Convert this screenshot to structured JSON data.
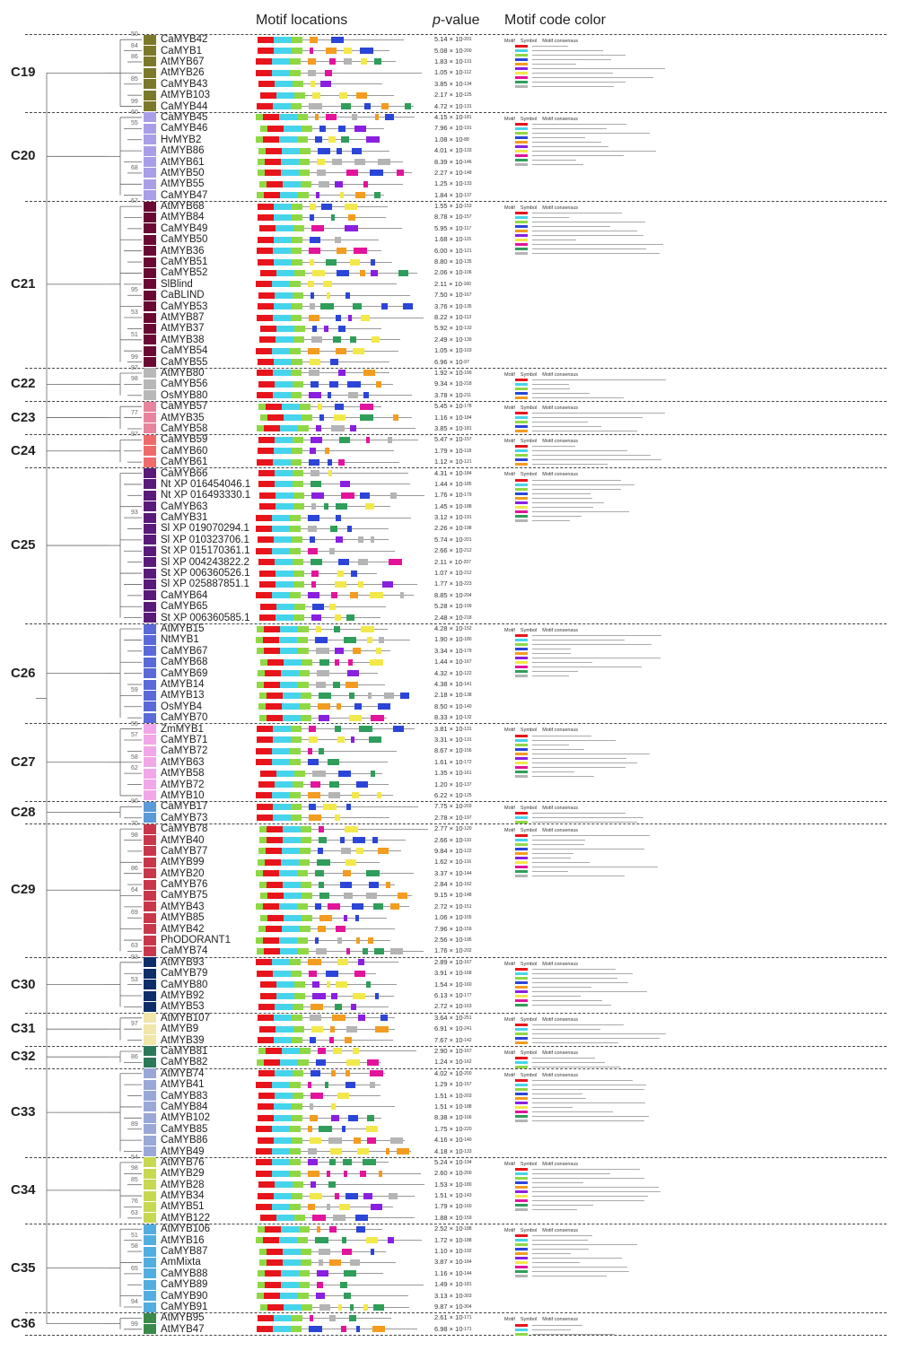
{
  "headers": {
    "motif_locations": "Motif locations",
    "p_value_prefix": "p",
    "p_value_suffix": "-value",
    "motif_code_color": "Motif code color"
  },
  "legend_labels": {
    "motif": "Motif",
    "symbol": "Symbol",
    "consensus": "Motif consensus"
  },
  "motif_colors": [
    "#e8141b",
    "#46d4ec",
    "#8fd843",
    "#2b45d8",
    "#f39c1f",
    "#8a1fe0",
    "#f3e84a",
    "#e3149b",
    "#2f9e5a",
    "#b4b4b4"
  ],
  "clades": [
    {
      "name": "C19",
      "color": "#7a7a2a",
      "genes": [
        {
          "name": "CaMYB42",
          "pv": "5.14 × 10",
          "exp": "-201",
          "bs": "50"
        },
        {
          "name": "CaMYB1",
          "pv": "5.08 × 10",
          "exp": "-200",
          "bs": "84"
        },
        {
          "name": "AtMYB67",
          "pv": "1.83 × 10",
          "exp": "-131",
          "bs": "86"
        },
        {
          "name": "AtMYB26",
          "pv": "1.05 × 10",
          "exp": "-112",
          "bs": ""
        },
        {
          "name": "CaMYB43",
          "pv": "3.85 × 10",
          "exp": "-134",
          "bs": "85"
        },
        {
          "name": "AtMYB103",
          "pv": "2.17 × 10",
          "exp": "-125",
          "bs": ""
        },
        {
          "name": "CaMYB44",
          "pv": "4.72 × 10",
          "exp": "-131",
          "bs": "99"
        }
      ]
    },
    {
      "name": "C20",
      "color": "#a99ee8",
      "genes": [
        {
          "name": "CaMYB45",
          "pv": "4.15 × 10",
          "exp": "-181",
          "bs": "60"
        },
        {
          "name": "CaMYB46",
          "pv": "7.96 × 10",
          "exp": "-191",
          "bs": "55"
        },
        {
          "name": "HvMYB2",
          "pv": "1.08 × 10",
          "exp": "-88",
          "bs": ""
        },
        {
          "name": "AtMYB86",
          "pv": "4.01 × 10",
          "exp": "-133",
          "bs": ""
        },
        {
          "name": "AtMYB61",
          "pv": "8.39 × 10",
          "exp": "-146",
          "bs": ""
        },
        {
          "name": "AtMYB50",
          "pv": "2.27 × 10",
          "exp": "-148",
          "bs": "68"
        },
        {
          "name": "AtMYB55",
          "pv": "1.25 × 10",
          "exp": "-133",
          "bs": ""
        },
        {
          "name": "CaMYB47",
          "pv": "1.84 × 10",
          "exp": "-137",
          "bs": ""
        }
      ]
    },
    {
      "name": "C21",
      "color": "#6a0a32",
      "genes": [
        {
          "name": "AtMYB68",
          "pv": "1.55 × 10",
          "exp": "-153",
          "bs": "67"
        },
        {
          "name": "AtMYB84",
          "pv": "8.78 × 10",
          "exp": "-157",
          "bs": ""
        },
        {
          "name": "CaMYB49",
          "pv": "5.95 × 10",
          "exp": "-117",
          "bs": ""
        },
        {
          "name": "CaMYB50",
          "pv": "1.68 × 10",
          "exp": "-115",
          "bs": ""
        },
        {
          "name": "AtMYB36",
          "pv": "6.00 × 10",
          "exp": "-121",
          "bs": ""
        },
        {
          "name": "CaMYB51",
          "pv": "8.80 × 10",
          "exp": "-135",
          "bs": ""
        },
        {
          "name": "CaMYB52",
          "pv": "2.06 × 10",
          "exp": "-106",
          "bs": ""
        },
        {
          "name": "SlBlind",
          "pv": "2.11 × 10",
          "exp": "-160",
          "bs": ""
        },
        {
          "name": "CaBLIND",
          "pv": "7.50 × 10",
          "exp": "-167",
          "bs": "95"
        },
        {
          "name": "CaMYB53",
          "pv": "3.76 × 10",
          "exp": "-135",
          "bs": ""
        },
        {
          "name": "AtMYB87",
          "pv": "8.22 × 10",
          "exp": "-113",
          "bs": "53"
        },
        {
          "name": "AtMYB37",
          "pv": "5.92 × 10",
          "exp": "-133",
          "bs": ""
        },
        {
          "name": "AtMYB38",
          "pv": "2.49 × 10",
          "exp": "-139",
          "bs": "51"
        },
        {
          "name": "CaMYB54",
          "pv": "1.05 × 10",
          "exp": "-103",
          "bs": ""
        },
        {
          "name": "CaMYB55",
          "pv": "6.96 × 10",
          "exp": "-97",
          "bs": "99"
        }
      ]
    },
    {
      "name": "C22",
      "color": "#b8b8b8",
      "genes": [
        {
          "name": "AtMYB80",
          "pv": "1.92 × 10",
          "exp": "-199",
          "bs": "97"
        },
        {
          "name": "CaMYB56",
          "pv": "9.34 × 10",
          "exp": "-218",
          "bs": "98"
        },
        {
          "name": "OsMYB80",
          "pv": "3.78 × 10",
          "exp": "-211",
          "bs": ""
        }
      ]
    },
    {
      "name": "C23",
      "color": "#e8849e",
      "genes": [
        {
          "name": "CaMYB57",
          "pv": "5.45 × 10",
          "exp": "-178",
          "bs": ""
        },
        {
          "name": "AtMYB35",
          "pv": "1.16 × 10",
          "exp": "-184",
          "bs": "77"
        },
        {
          "name": "CaMYB58",
          "pv": "3.85 × 10",
          "exp": "-181",
          "bs": ""
        }
      ]
    },
    {
      "name": "C24",
      "color": "#f06a6a",
      "genes": [
        {
          "name": "CaMYB59",
          "pv": "5.47 × 10",
          "exp": "-157",
          "bs": "97"
        },
        {
          "name": "CaMYB60",
          "pv": "1.79 × 10",
          "exp": "-118",
          "bs": ""
        },
        {
          "name": "CaMYB61",
          "pv": "1.12 × 10",
          "exp": "-121",
          "bs": ""
        }
      ]
    },
    {
      "name": "C25",
      "color": "#5a1a7a",
      "genes": [
        {
          "name": "CaMYB66",
          "pv": "4.31 × 10",
          "exp": "-184",
          "bs": ""
        },
        {
          "name": "Nt XP 016454046.1",
          "pv": "1.44 × 10",
          "exp": "-185",
          "bs": ""
        },
        {
          "name": "Nt XP 016493330.1",
          "pv": "1.76 × 10",
          "exp": "-179",
          "bs": ""
        },
        {
          "name": "CaMYB63",
          "pv": "1.45 × 10",
          "exp": "-188",
          "bs": ""
        },
        {
          "name": "CaMYB31",
          "pv": "3.12 × 10",
          "exp": "-191",
          "bs": "93"
        },
        {
          "name": "Sl XP 019070294.1",
          "pv": "2.26 × 10",
          "exp": "-198",
          "bs": ""
        },
        {
          "name": "Sl XP 010323706.1",
          "pv": "5.74 × 10",
          "exp": "-201",
          "bs": ""
        },
        {
          "name": "St XP 015170361.1",
          "pv": "2.66 × 10",
          "exp": "-212",
          "bs": ""
        },
        {
          "name": "Sl XP 004243822.2",
          "pv": "2.11 × 10",
          "exp": "-207",
          "bs": ""
        },
        {
          "name": "St XP 006360526.1",
          "pv": "1.07 × 10",
          "exp": "-212",
          "bs": ""
        },
        {
          "name": "Sl XP 025887851.1",
          "pv": "1.77 × 10",
          "exp": "-223",
          "bs": ""
        },
        {
          "name": "CaMYB64",
          "pv": "8.85 × 10",
          "exp": "-204",
          "bs": ""
        },
        {
          "name": "CaMYB65",
          "pv": "5.28 × 10",
          "exp": "-199",
          "bs": ""
        },
        {
          "name": "St XP 006360585.1",
          "pv": "2.48 × 10",
          "exp": "-218",
          "bs": ""
        }
      ]
    },
    {
      "name": "C26",
      "color": "#5a6ad8",
      "genes": [
        {
          "name": "AtMYB15",
          "pv": "4.28 × 10",
          "exp": "-152",
          "bs": ""
        },
        {
          "name": "NtMYB1",
          "pv": "1.90 × 10",
          "exp": "-180",
          "bs": ""
        },
        {
          "name": "CaMYB67",
          "pv": "3.34 × 10",
          "exp": "-179",
          "bs": ""
        },
        {
          "name": "CaMYB68",
          "pv": "1.44 × 10",
          "exp": "-167",
          "bs": ""
        },
        {
          "name": "CaMYB69",
          "pv": "4.32 × 10",
          "exp": "-122",
          "bs": ""
        },
        {
          "name": "AtMYB14",
          "pv": "4.38 × 10",
          "exp": "-141",
          "bs": ""
        },
        {
          "name": "AtMYB13",
          "pv": "2.18 × 10",
          "exp": "-138",
          "bs": "59"
        },
        {
          "name": "OsMYB4",
          "pv": "8.50 × 10",
          "exp": "-140",
          "bs": ""
        },
        {
          "name": "CaMYB70",
          "pv": "8.33 × 10",
          "exp": "-132",
          "bs": ""
        }
      ]
    },
    {
      "name": "C27",
      "color": "#f2a8e8",
      "genes": [
        {
          "name": "ZmMYB1",
          "pv": "3.81 × 10",
          "exp": "-131",
          "bs": "55"
        },
        {
          "name": "CaMYB71",
          "pv": "3.31 × 10",
          "exp": "-131",
          "bs": "57"
        },
        {
          "name": "CaMYB72",
          "pv": "8.67 × 10",
          "exp": "-156",
          "bs": ""
        },
        {
          "name": "AtMYB63",
          "pv": "1.61 × 10",
          "exp": "-172",
          "bs": "58"
        },
        {
          "name": "AtMYB58",
          "pv": "1.35 × 10",
          "exp": "-161",
          "bs": "62"
        },
        {
          "name": "AtMYB72",
          "pv": "1.20 × 10",
          "exp": "-137",
          "bs": ""
        },
        {
          "name": "AtMYB10",
          "pv": "6.22 × 10",
          "exp": "-125",
          "bs": ""
        }
      ]
    },
    {
      "name": "C28",
      "color": "#5a9ad8",
      "genes": [
        {
          "name": "CaMYB17",
          "pv": "7.75 × 10",
          "exp": "-203",
          "bs": "90"
        },
        {
          "name": "CaMYB73",
          "pv": "2.78 × 10",
          "exp": "-197",
          "bs": ""
        }
      ]
    },
    {
      "name": "C29",
      "color": "#c8384a",
      "genes": [
        {
          "name": "CaMYB78",
          "pv": "2.77 × 10",
          "exp": "-120",
          "bs": "70"
        },
        {
          "name": "AtMYB40",
          "pv": "2.66 × 10",
          "exp": "-110",
          "bs": "98"
        },
        {
          "name": "CaMYB77",
          "pv": "9.84 × 10",
          "exp": "-122",
          "bs": ""
        },
        {
          "name": "AtMYB99",
          "pv": "1.62 × 10",
          "exp": "-116",
          "bs": ""
        },
        {
          "name": "AtMYB20",
          "pv": "3.37 × 10",
          "exp": "-144",
          "bs": "86"
        },
        {
          "name": "CaMYB76",
          "pv": "2.84 × 10",
          "exp": "-162",
          "bs": ""
        },
        {
          "name": "CaMYB75",
          "pv": "9.15 × 10",
          "exp": "-148",
          "bs": "64"
        },
        {
          "name": "AtMYB43",
          "pv": "2.72 × 10",
          "exp": "-151",
          "bs": ""
        },
        {
          "name": "AtMYB85",
          "pv": "1.06 × 10",
          "exp": "-165",
          "bs": "69"
        },
        {
          "name": "AtMYB42",
          "pv": "7.96 × 10",
          "exp": "-159",
          "bs": ""
        },
        {
          "name": "PhODORANT1",
          "pv": "2.56 × 10",
          "exp": "-195",
          "bs": ""
        },
        {
          "name": "CaMYB74",
          "pv": "1.76 × 10",
          "exp": "-202",
          "bs": "63"
        }
      ]
    },
    {
      "name": "C30",
      "color": "#0e2e6a",
      "genes": [
        {
          "name": "AtMYB93",
          "pv": "2.89 × 10",
          "exp": "-167",
          "bs": "93"
        },
        {
          "name": "CaMYB79",
          "pv": "3.91 × 10",
          "exp": "-168",
          "bs": ""
        },
        {
          "name": "CaMYB80",
          "pv": "1.54 × 10",
          "exp": "-160",
          "bs": "53"
        },
        {
          "name": "AtMYB92",
          "pv": "6.13 × 10",
          "exp": "-177",
          "bs": ""
        },
        {
          "name": "AtMYB53",
          "pv": "2.72 × 10",
          "exp": "-163",
          "bs": ""
        }
      ]
    },
    {
      "name": "C31",
      "color": "#f2e6a8",
      "genes": [
        {
          "name": "AtMYB107",
          "pv": "3.64 × 10",
          "exp": "-251",
          "bs": ""
        },
        {
          "name": "AtMYB9",
          "pv": "6.91 × 10",
          "exp": "-241",
          "bs": "97"
        },
        {
          "name": "AtMYB39",
          "pv": "7.67 × 10",
          "exp": "-142",
          "bs": ""
        }
      ]
    },
    {
      "name": "C32",
      "color": "#2a7a5a",
      "genes": [
        {
          "name": "CaMYB81",
          "pv": "2.90 × 10",
          "exp": "-167",
          "bs": ""
        },
        {
          "name": "CaMYB82",
          "pv": "1.24 × 10",
          "exp": "-162",
          "bs": "86"
        }
      ]
    },
    {
      "name": "C33",
      "color": "#9aa8d8",
      "genes": [
        {
          "name": "AtMYB74",
          "pv": "4.02 × 10",
          "exp": "-200",
          "bs": ""
        },
        {
          "name": "AtMYB41",
          "pv": "1.29 × 10",
          "exp": "-157",
          "bs": ""
        },
        {
          "name": "CaMYB83",
          "pv": "1.51 × 10",
          "exp": "-203",
          "bs": ""
        },
        {
          "name": "CaMYB84",
          "pv": "1.51 × 10",
          "exp": "-188",
          "bs": ""
        },
        {
          "name": "AtMYB102",
          "pv": "8.38 × 10",
          "exp": "-166",
          "bs": ""
        },
        {
          "name": "CaMYB85",
          "pv": "1.75 × 10",
          "exp": "-220",
          "bs": "89"
        },
        {
          "name": "CaMYB86",
          "pv": "4.16 × 10",
          "exp": "-140",
          "bs": ""
        },
        {
          "name": "AtMYB49",
          "pv": "4.18 × 10",
          "exp": "-133",
          "bs": ""
        }
      ]
    },
    {
      "name": "C34",
      "color": "#c8d850",
      "genes": [
        {
          "name": "AtMYB76",
          "pv": "5.24 × 10",
          "exp": "-194",
          "bs": "54"
        },
        {
          "name": "AtMYB29",
          "pv": "2.60 × 10",
          "exp": "-200",
          "bs": "98"
        },
        {
          "name": "AtMYB28",
          "pv": "1.53 × 10",
          "exp": "-180",
          "bs": "85"
        },
        {
          "name": "AtMYB34",
          "pv": "1.51 × 10",
          "exp": "-143",
          "bs": ""
        },
        {
          "name": "AtMYB51",
          "pv": "1.79 × 10",
          "exp": "-160",
          "bs": "76"
        },
        {
          "name": "AtMYB122",
          "pv": "1.88 × 10",
          "exp": "-159",
          "bs": "63"
        }
      ]
    },
    {
      "name": "C35",
      "color": "#52aee0",
      "genes": [
        {
          "name": "AtMYB106",
          "pv": "2.52 × 10",
          "exp": "-188",
          "bs": ""
        },
        {
          "name": "AtMYB16",
          "pv": "1.72 × 10",
          "exp": "-188",
          "bs": "51"
        },
        {
          "name": "CaMYB87",
          "pv": "1.10 × 10",
          "exp": "-192",
          "bs": "58"
        },
        {
          "name": "AmMixta",
          "pv": "3.87 × 10",
          "exp": "-184",
          "bs": ""
        },
        {
          "name": "CaMYB88",
          "pv": "1.16 × 10",
          "exp": "-144",
          "bs": "65"
        },
        {
          "name": "CaMYB89",
          "pv": "1.49 × 10",
          "exp": "-181",
          "bs": ""
        },
        {
          "name": "CaMYB90",
          "pv": "3.13 × 10",
          "exp": "-303",
          "bs": ""
        },
        {
          "name": "CaMYB91",
          "pv": "9.87 × 10",
          "exp": "-304",
          "bs": "94"
        }
      ]
    },
    {
      "name": "C36",
      "color": "#3a8a4a",
      "genes": [
        {
          "name": "AtMYB95",
          "pv": "2.61 × 10",
          "exp": "-171",
          "bs": ""
        },
        {
          "name": "AtMYB47",
          "pv": "6.98 × 10",
          "exp": "-171",
          "bs": "99"
        }
      ]
    }
  ]
}
